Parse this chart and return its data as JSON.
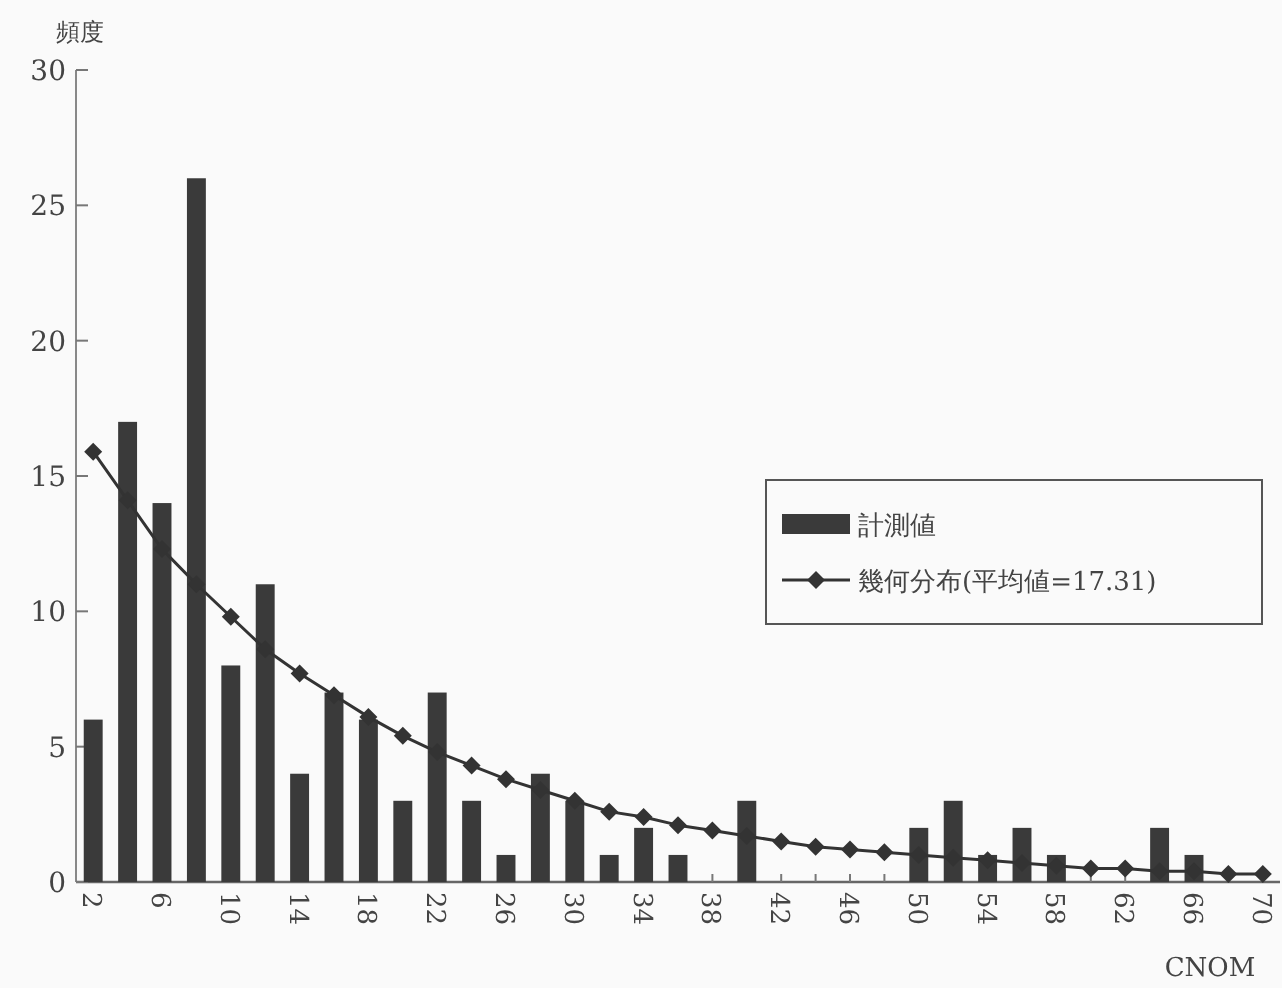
{
  "chart_data": {
    "type": "bar",
    "ylabel": "頻度",
    "xlabel": "CNOM",
    "categories": [
      "2",
      null,
      "6",
      null,
      "10",
      null,
      "14",
      null,
      "18",
      null,
      "22",
      null,
      "26",
      null,
      "30",
      null,
      "34",
      null,
      "38",
      null,
      "42",
      null,
      "46",
      null,
      "50",
      null,
      "54",
      null,
      "58",
      null,
      "62",
      null,
      "66",
      null,
      "70"
    ],
    "series": [
      {
        "name": "計測値",
        "color": "#3a3a3a",
        "values": [
          6,
          17,
          14,
          26,
          8,
          11,
          4,
          7,
          6,
          3,
          7,
          3,
          1,
          4,
          3,
          1,
          2,
          1,
          0,
          3,
          0,
          0,
          0,
          0,
          2,
          3,
          1,
          2,
          1,
          0,
          0,
          2,
          1,
          0,
          0
        ]
      },
      {
        "name": "幾何分布(平均値=17.31)",
        "type": "line",
        "color": "#333333",
        "marker": "diamond",
        "values": [
          15.9,
          14.1,
          12.3,
          11.0,
          9.8,
          8.6,
          7.7,
          6.9,
          6.1,
          5.4,
          4.8,
          4.3,
          3.8,
          3.4,
          3.0,
          2.6,
          2.4,
          2.1,
          1.9,
          1.7,
          1.5,
          1.3,
          1.2,
          1.1,
          1.0,
          0.9,
          0.8,
          0.7,
          0.6,
          0.5,
          0.5,
          0.4,
          0.4,
          0.3,
          0.3
        ]
      }
    ],
    "ylim": [
      0,
      30
    ],
    "yticks": [
      0,
      5,
      10,
      15,
      20,
      25,
      30
    ],
    "legend": "right",
    "grid": false
  }
}
